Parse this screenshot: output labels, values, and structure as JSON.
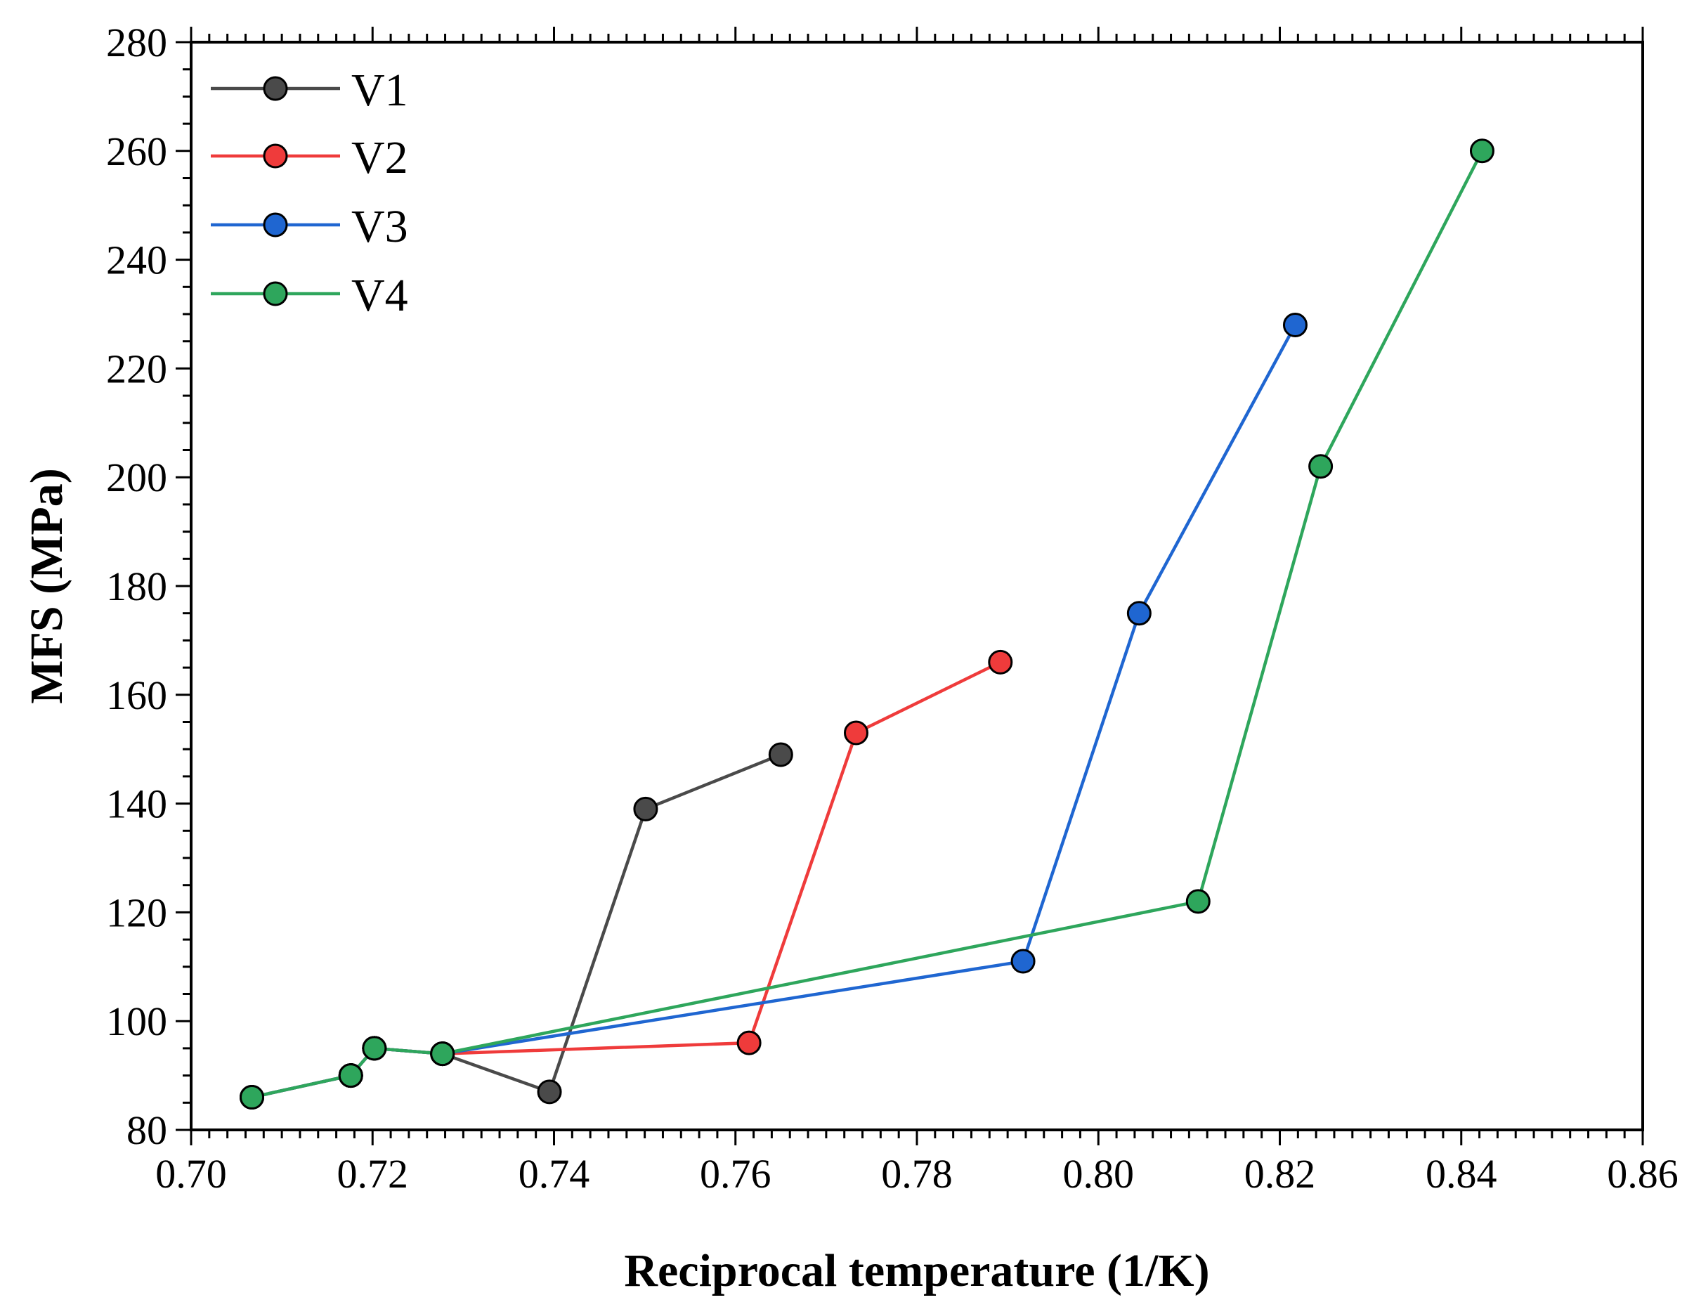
{
  "chart_data": {
    "type": "line",
    "title": "",
    "xlabel": "Reciprocal temperature (1/K)",
    "ylabel": "MFS (MPa)",
    "xlim": [
      0.7,
      0.86
    ],
    "ylim": [
      80,
      280
    ],
    "x_ticks": [
      0.7,
      0.72,
      0.74,
      0.76,
      0.78,
      0.8,
      0.82,
      0.84,
      0.86
    ],
    "x_tick_labels": [
      "0.70",
      "0.72",
      "0.74",
      "0.76",
      "0.78",
      "0.80",
      "0.82",
      "0.84",
      "0.86"
    ],
    "y_ticks": [
      80,
      100,
      120,
      140,
      160,
      180,
      200,
      220,
      240,
      260,
      280
    ],
    "y_tick_labels": [
      "80",
      "100",
      "120",
      "140",
      "160",
      "180",
      "200",
      "220",
      "240",
      "260",
      "280"
    ],
    "legend_position": "top-left",
    "grid": false,
    "series": [
      {
        "name": "V1",
        "color": "#4a4a4a",
        "x": [
          0.7067,
          0.7176,
          0.7202,
          0.7277,
          0.7395,
          0.7501,
          0.765
        ],
        "y": [
          86,
          90,
          95,
          94,
          87,
          139,
          149
        ]
      },
      {
        "name": "V2",
        "color": "#ef3b3b",
        "x": [
          0.7067,
          0.7176,
          0.7202,
          0.7277,
          0.7615,
          0.7733,
          0.7892
        ],
        "y": [
          86,
          90,
          95,
          94,
          96,
          153,
          166
        ]
      },
      {
        "name": "V3",
        "color": "#1f66d1",
        "x": [
          0.7067,
          0.7176,
          0.7202,
          0.7277,
          0.7917,
          0.8045,
          0.8217
        ],
        "y": [
          86,
          90,
          95,
          94,
          111,
          175,
          228
        ]
      },
      {
        "name": "V4",
        "color": "#2ea65c",
        "x": [
          0.7067,
          0.7176,
          0.7202,
          0.7277,
          0.811,
          0.8245,
          0.8423
        ],
        "y": [
          86,
          90,
          95,
          94,
          122,
          202,
          260
        ]
      }
    ]
  }
}
